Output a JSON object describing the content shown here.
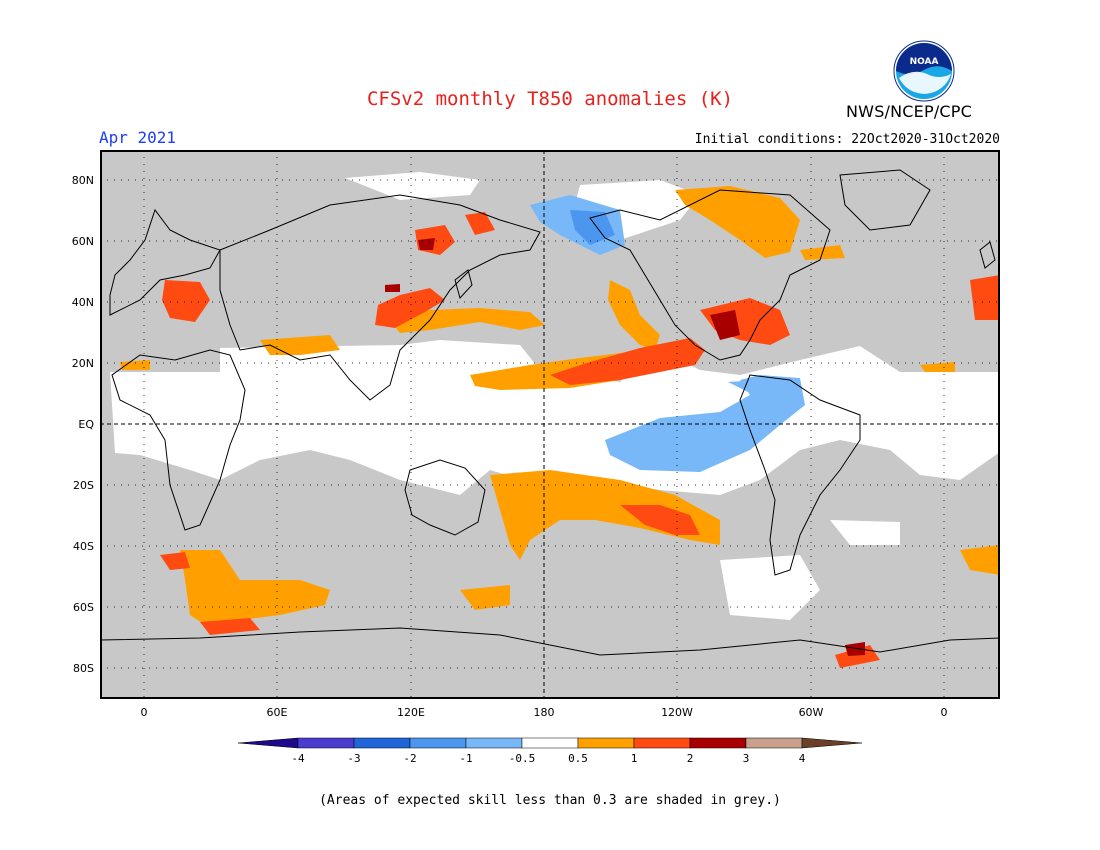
{
  "header": {
    "title": "CFSv2 monthly T850 anomalies (K)",
    "month": "Apr 2021",
    "initial_conditions": "Initial conditions: 22Oct2020-31Oct2020",
    "agency": "NWS/NCEP/CPC",
    "logo_text": "NOAA"
  },
  "axes": {
    "lat_labels": [
      "80N",
      "60N",
      "40N",
      "20N",
      "EQ",
      "20S",
      "40S",
      "60S",
      "80S"
    ],
    "lon_labels": [
      "0",
      "60E",
      "120E",
      "180",
      "120W",
      "60W",
      "0"
    ]
  },
  "colorbar": {
    "labels": [
      "-4",
      "-3",
      "-2",
      "-1",
      "-0.5",
      "0.5",
      "1",
      "2",
      "3",
      "4"
    ],
    "colors": [
      "#1e0a8c",
      "#4b3cd0",
      "#2066d8",
      "#4c96f0",
      "#78b8f8",
      "#ffffff",
      "#ffa000",
      "#ff4a12",
      "#a80000",
      "#c8a08c",
      "#6b4028"
    ]
  },
  "legend_colors": {
    "grey": "#c8c8c8",
    "lightblue": "#78b8f8",
    "blue": "#4c96f0",
    "orange": "#ffa000",
    "red": "#ff4a12",
    "darkred": "#a80000"
  },
  "footnote": "(Areas of expected skill less than 0.3 are shaded in grey.)"
}
